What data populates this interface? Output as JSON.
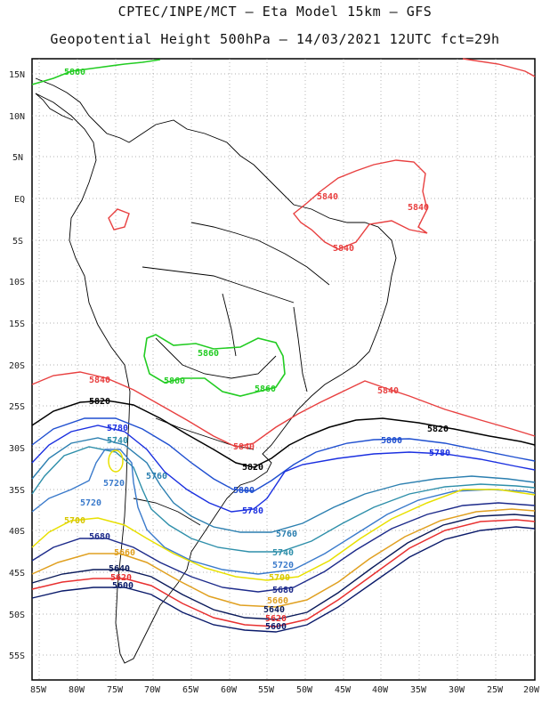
{
  "title": "CPTEC/INPE/MCT –  Eta Model 15km – GFS",
  "subtitle": "Geopotential Height 500hPa – 14/03/2021 12UTC fct=29h",
  "lat_labels": [
    "15N",
    "10N",
    "5N",
    "EQ",
    "5S",
    "10S",
    "15S",
    "20S",
    "25S",
    "30S",
    "35S",
    "40S",
    "45S",
    "50S",
    "55S"
  ],
  "lon_labels": [
    "85W",
    "80W",
    "75W",
    "70W",
    "65W",
    "60W",
    "55W",
    "50W",
    "45W",
    "40W",
    "35W",
    "30W",
    "25W",
    "20W"
  ],
  "contour_labels": {
    "c5860": "5860",
    "c5840": "5840",
    "c5820": "5820",
    "c5800": "5800",
    "c5780": "5780",
    "c5760": "5760",
    "c5740": "5740",
    "c5720": "5720",
    "c5700": "5700",
    "c5680": "5680",
    "c5660": "5660",
    "c5640": "5640",
    "c5620": "5620",
    "c5600": "5600"
  },
  "colors": {
    "c5860": "#22cc22",
    "c5840": "#e84040",
    "c5820": "#000000",
    "c5800": "#1f4fd0",
    "c5780": "#1a2fe0",
    "c5760": "#2b7fb0",
    "c5740": "#2e8faa",
    "c5720": "#3a7acb",
    "c5700": "#e8e000",
    "c5680": "#1c2a8a",
    "c5660": "#e0a020",
    "c5640": "#0a1a5a",
    "c5620": "#e83030",
    "c5600": "#0a1a6a"
  }
}
